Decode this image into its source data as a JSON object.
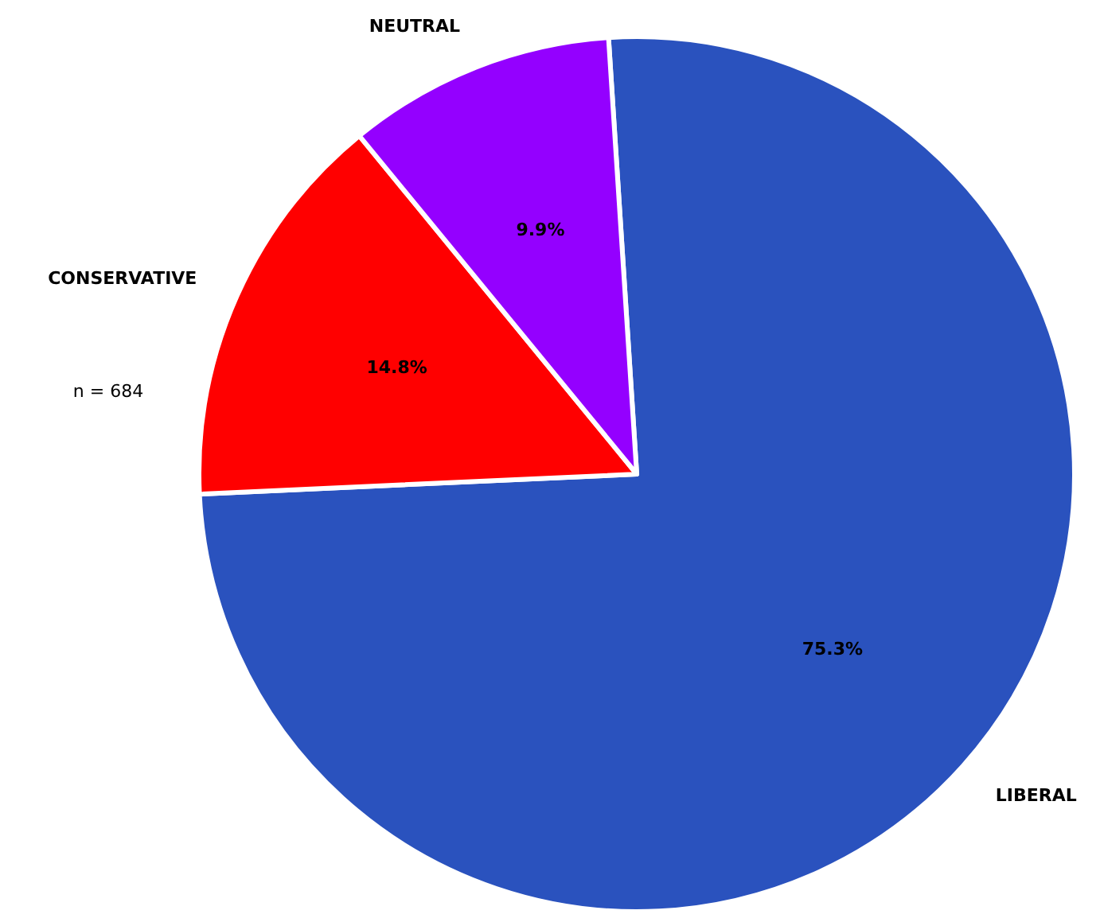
{
  "chart_data": {
    "type": "pie",
    "categories": [
      "LIBERAL",
      "CONSERVATIVE",
      "NEUTRAL"
    ],
    "values": [
      75.3,
      14.8,
      9.9
    ],
    "colors": [
      "#2a52be",
      "#ff0000",
      "#9400ff"
    ],
    "value_labels": [
      "75.3%",
      "14.8%",
      "9.9%"
    ],
    "annotations": [
      "n = 684"
    ]
  }
}
